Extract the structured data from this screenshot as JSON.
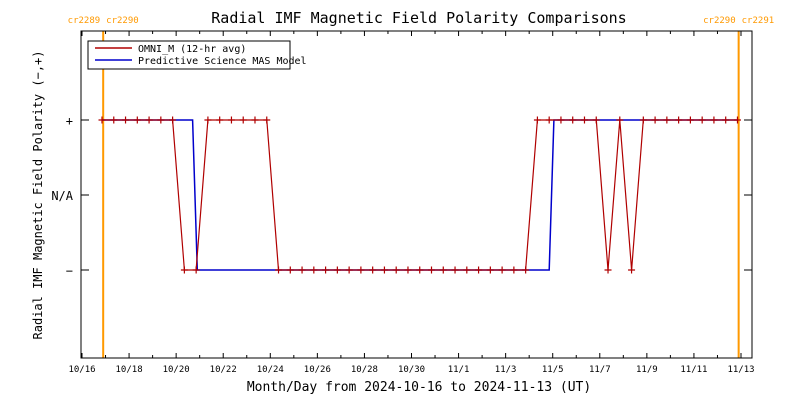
{
  "chart_data": {
    "type": "line",
    "title": "Radial IMF Magnetic Field Polarity Comparisons",
    "xlabel": "Month/Day from 2024-10-16 to 2024-11-13 (UT)",
    "ylabel": "Radial IMF Magnetic Field Polarity (−,+)",
    "xlim": [
      0,
      28
    ],
    "ylim": [
      -2.5,
      2.5
    ],
    "x_ticks": [
      {
        "x": 0,
        "label": "10/16"
      },
      {
        "x": 2,
        "label": "10/18"
      },
      {
        "x": 4,
        "label": "10/20"
      },
      {
        "x": 6,
        "label": "10/22"
      },
      {
        "x": 8,
        "label": "10/24"
      },
      {
        "x": 10,
        "label": "10/26"
      },
      {
        "x": 12,
        "label": "10/28"
      },
      {
        "x": 14,
        "label": "10/30"
      },
      {
        "x": 16,
        "label": "11/1"
      },
      {
        "x": 18,
        "label": "11/3"
      },
      {
        "x": 20,
        "label": "11/5"
      },
      {
        "x": 22,
        "label": "11/7"
      },
      {
        "x": 24,
        "label": "11/9"
      },
      {
        "x": 26,
        "label": "11/11"
      },
      {
        "x": 28,
        "label": "11/13"
      }
    ],
    "y_ticks": [
      {
        "y": 1,
        "label": "+"
      },
      {
        "y": 0,
        "label": "N/A"
      },
      {
        "y": -1,
        "label": "−"
      }
    ],
    "legend": {
      "placement": "top-left",
      "entries": [
        {
          "label": "OMNI_M (12-hr avg)",
          "color": "#b00000"
        },
        {
          "label": "Predictive Science MAS Model",
          "color": "#0000cc"
        }
      ]
    },
    "carrington_markers": [
      {
        "x": 0.9,
        "left_label": "cr2289",
        "right_label": "cr2290"
      },
      {
        "x": 27.9,
        "left_label": "cr2290",
        "right_label": "cr2291"
      }
    ],
    "marker_color": "#ff9900",
    "series": [
      {
        "name": "OMNI_M (12-hr avg)",
        "color": "#b00000",
        "marker": "+",
        "x": [
          0.85,
          1.35,
          1.85,
          2.35,
          2.85,
          3.35,
          3.85,
          4.35,
          4.85,
          5.35,
          5.85,
          6.35,
          6.85,
          7.35,
          7.85,
          8.35,
          8.85,
          9.35,
          9.85,
          10.35,
          10.85,
          11.35,
          11.85,
          12.35,
          12.85,
          13.35,
          13.85,
          14.35,
          14.85,
          15.35,
          15.85,
          16.35,
          16.85,
          17.35,
          17.85,
          18.35,
          18.85,
          19.35,
          19.85,
          20.35,
          20.85,
          21.35,
          21.85,
          22.35,
          22.85,
          23.35,
          23.85,
          24.35,
          24.85,
          25.35,
          25.85,
          26.35,
          26.85,
          27.35,
          27.85
        ],
        "y": [
          1,
          1,
          1,
          1,
          1,
          1,
          1,
          -1,
          -1,
          1,
          1,
          1,
          1,
          1,
          1,
          -1,
          -1,
          -1,
          -1,
          -1,
          -1,
          -1,
          -1,
          -1,
          -1,
          -1,
          -1,
          -1,
          -1,
          -1,
          -1,
          -1,
          -1,
          -1,
          -1,
          -1,
          -1,
          1,
          1,
          1,
          1,
          1,
          1,
          -1,
          1,
          -1,
          1,
          1,
          1,
          1,
          1,
          1,
          1,
          1,
          1
        ]
      },
      {
        "name": "Predictive Science MAS Model",
        "color": "#0000cc",
        "step_points": [
          [
            0.85,
            1
          ],
          [
            4.7,
            1
          ],
          [
            4.9,
            -1
          ],
          [
            19.85,
            -1
          ],
          [
            20.05,
            1
          ],
          [
            27.85,
            1
          ]
        ]
      }
    ],
    "grid": false
  }
}
